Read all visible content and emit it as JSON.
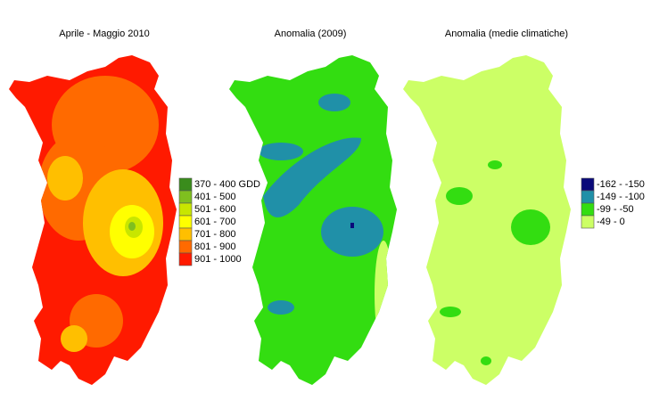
{
  "panels": [
    {
      "title": "Aprile - Maggio 2010"
    },
    {
      "title": "Anomalia (2009)"
    },
    {
      "title": "Anomalia (medie climatiche)"
    }
  ],
  "legends": [
    {
      "items": [
        "370 - 400 GDD",
        "401 - 500",
        "501 - 600",
        "601 - 700",
        "701 - 800",
        "801 - 900",
        "901 - 1000"
      ]
    },
    {
      "items": [
        "-162 - -150",
        "-149 - -100",
        "-99 - -50",
        "-49 - 0"
      ]
    }
  ]
}
